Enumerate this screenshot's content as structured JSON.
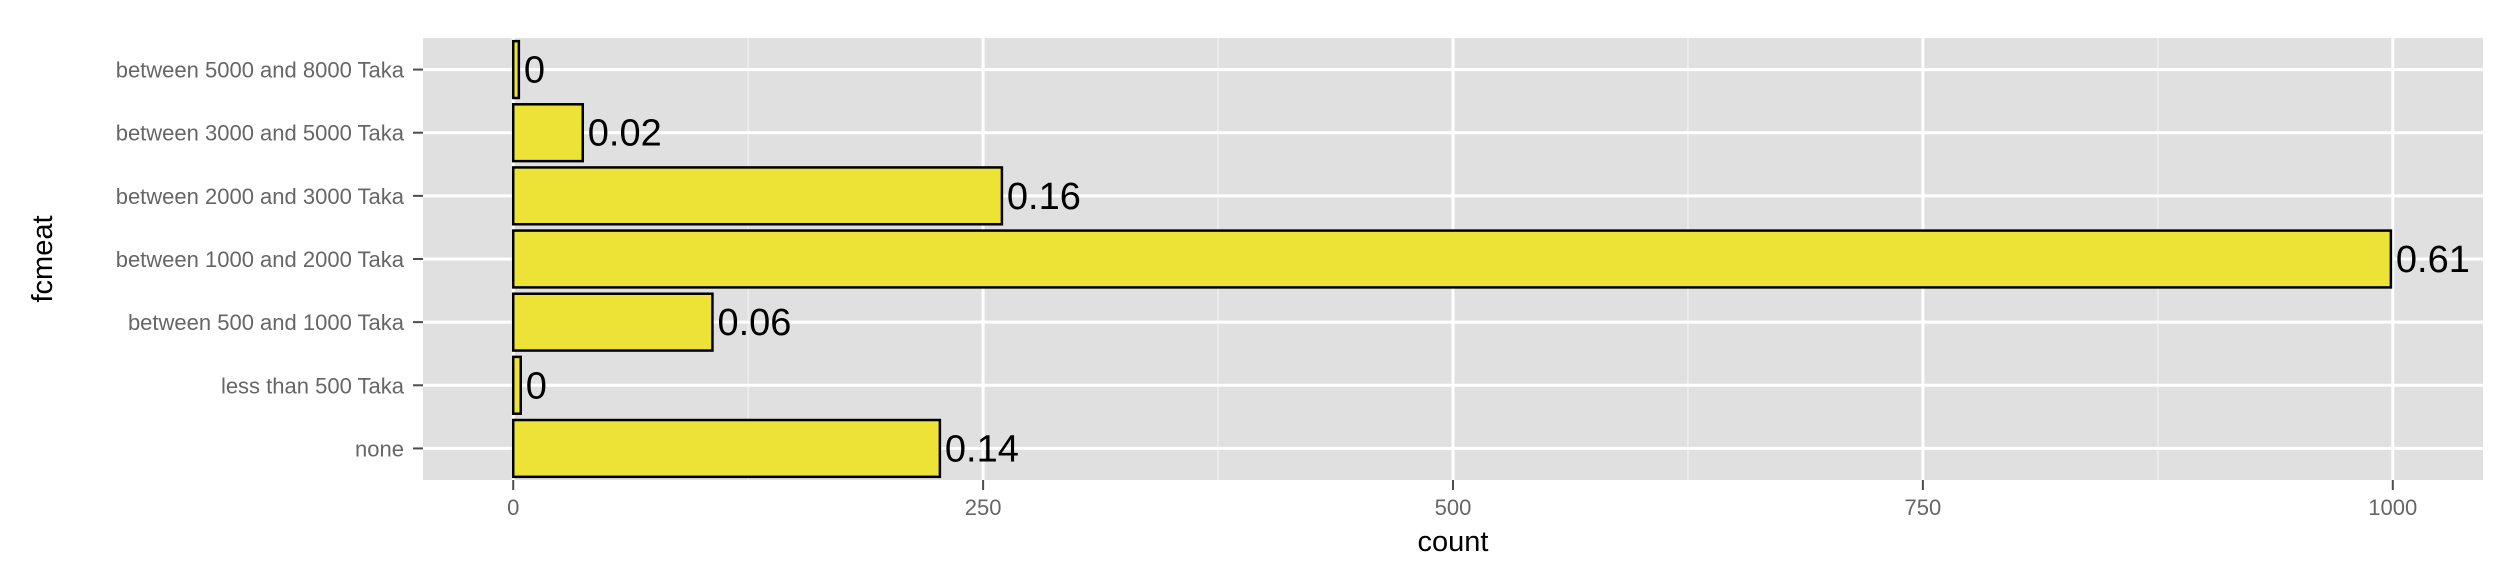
{
  "chart_data": {
    "type": "bar",
    "orientation": "horizontal",
    "categories": [
      "none",
      "less than 500 Taka",
      "between 500 and 1000 Taka",
      "between 1000 and 2000 Taka",
      "between 2000 and 3000 Taka",
      "between 3000 and 5000 Taka",
      "between 5000 and 8000 Taka"
    ],
    "values": [
      227,
      4,
      106,
      999,
      260,
      37,
      3
    ],
    "labels": [
      "0.14",
      "0",
      "0.06",
      "0.61",
      "0.16",
      "0.02",
      "0"
    ],
    "xlabel": "count",
    "ylabel": "fcmeat",
    "xlim": [
      -48,
      1048
    ],
    "xticks": [
      0,
      250,
      500,
      750,
      1000
    ],
    "grid": true,
    "legend": "none",
    "colors": {
      "bar_fill": "#ede236",
      "bar_outline": "#000000",
      "panel_background": "#e0e0e0",
      "grid_major": "#ffffff",
      "grid_minor": "#eeeeee"
    }
  }
}
